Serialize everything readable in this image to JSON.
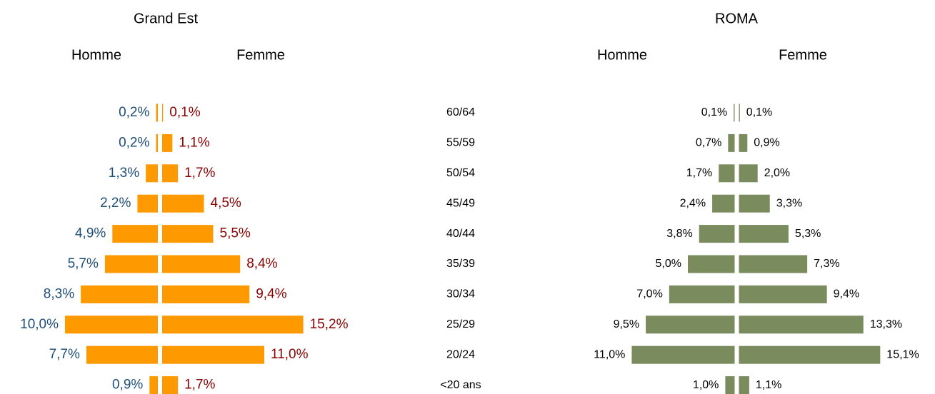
{
  "chart_data": [
    {
      "type": "pyramid",
      "title": "Grand Est",
      "categories": [
        "60/64",
        "55/59",
        "50/54",
        "45/49",
        "40/44",
        "35/39",
        "30/34",
        "25/29",
        "20/24",
        "<20 ans"
      ],
      "series": [
        {
          "name": "Homme",
          "color": "#ff9900",
          "label_color": "#1f4e79",
          "values": [
            0.2,
            0.2,
            1.3,
            2.2,
            4.9,
            5.7,
            8.3,
            10.0,
            7.7,
            0.9
          ],
          "value_labels": [
            "0,2%",
            "0,2%",
            "1,3%",
            "2,2%",
            "4,9%",
            "5,7%",
            "8,3%",
            "10,0%",
            "7,7%",
            "0,9%"
          ]
        },
        {
          "name": "Femme",
          "color": "#ff9900",
          "label_color": "#8b0000",
          "values": [
            0.1,
            1.1,
            1.7,
            4.5,
            5.5,
            8.4,
            9.4,
            15.2,
            11.0,
            1.7
          ],
          "value_labels": [
            "0,1%",
            "1,1%",
            "1,7%",
            "4,5%",
            "5,5%",
            "8,4%",
            "9,4%",
            "15,2%",
            "11,0%",
            "1,7%"
          ]
        }
      ]
    },
    {
      "type": "pyramid",
      "title": "ROMA",
      "series": [
        {
          "name": "Homme",
          "color": "#7a8c5e",
          "label_color": "#000000",
          "values": [
            0.1,
            0.7,
            1.7,
            2.4,
            3.8,
            5.0,
            7.0,
            9.5,
            11.0,
            1.0
          ],
          "value_labels": [
            "0,1%",
            "0,7%",
            "1,7%",
            "2,4%",
            "3,8%",
            "5,0%",
            "7,0%",
            "9,5%",
            "11,0%",
            "1,0%"
          ]
        },
        {
          "name": "Femme",
          "color": "#7a8c5e",
          "label_color": "#000000",
          "values": [
            0.1,
            0.9,
            2.0,
            3.3,
            5.3,
            7.3,
            9.4,
            13.3,
            15.1,
            1.1
          ],
          "value_labels": [
            "0,1%",
            "0,9%",
            "2,0%",
            "3,3%",
            "5,3%",
            "7,3%",
            "9,4%",
            "13,3%",
            "15,1%",
            "1,1%"
          ]
        }
      ]
    }
  ]
}
